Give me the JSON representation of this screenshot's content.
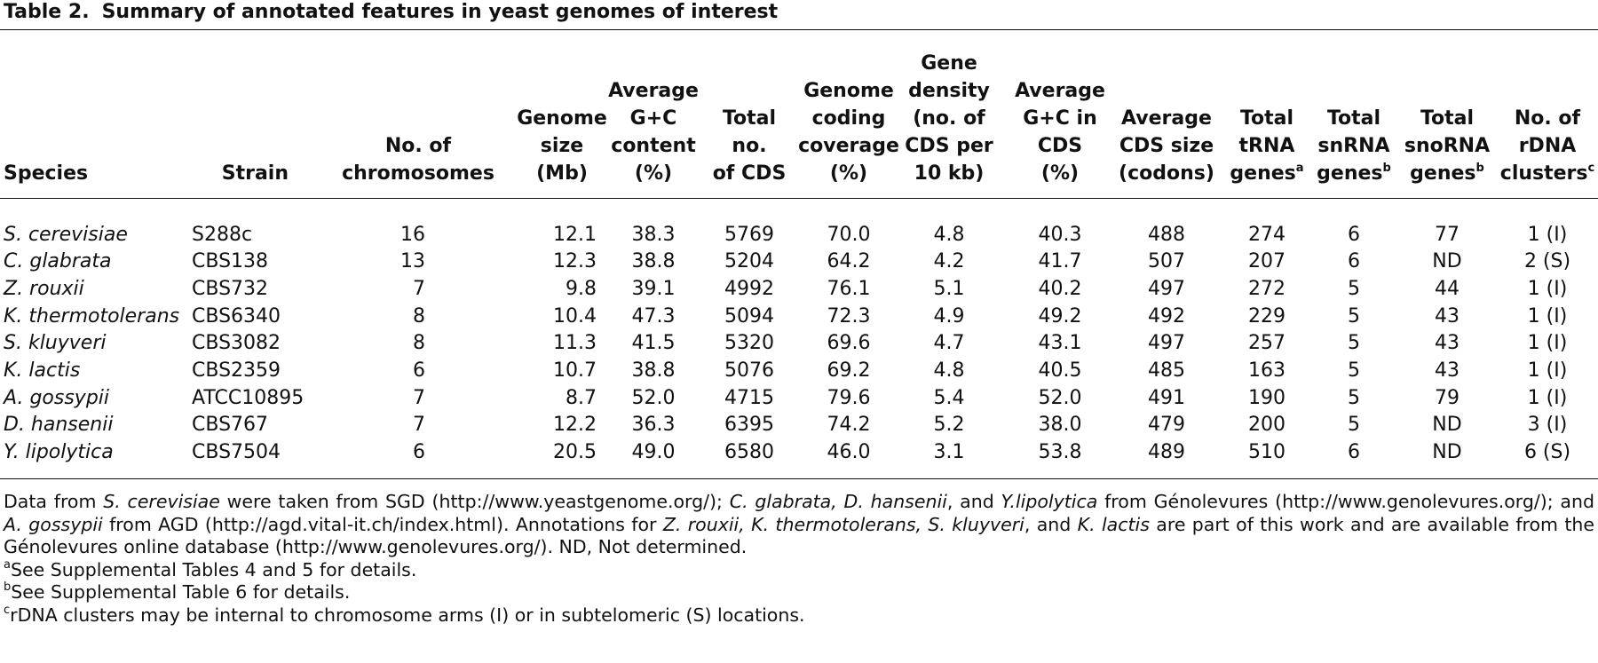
{
  "title": {
    "label": "Table 2.",
    "text": "Summary of annotated features in yeast genomes of interest"
  },
  "table": {
    "headers": [
      {
        "lines": [
          "Species"
        ]
      },
      {
        "lines": [
          "Strain"
        ]
      },
      {
        "lines": [
          "No. of",
          "chromosomes"
        ]
      },
      {
        "lines": [
          "Genome",
          "size",
          "(Mb)"
        ]
      },
      {
        "lines": [
          "Average",
          "G+C",
          "content",
          "(%)"
        ]
      },
      {
        "lines": [
          "Total",
          "no.",
          "of CDS"
        ]
      },
      {
        "lines": [
          "Genome",
          "coding",
          "coverage",
          "(%)"
        ]
      },
      {
        "lines": [
          "Gene",
          "density",
          "(no. of",
          "CDS per",
          "10 kb)"
        ]
      },
      {
        "lines": [
          "Average",
          "G+C in",
          "CDS",
          "(%)"
        ]
      },
      {
        "lines": [
          "Average",
          "CDS size",
          "(codons)"
        ]
      },
      {
        "lines": [
          "Total",
          "tRNA",
          "genes"
        ],
        "note": "a"
      },
      {
        "lines": [
          "Total",
          "snRNA",
          "genes"
        ],
        "note": "b"
      },
      {
        "lines": [
          "Total",
          "snoRNA",
          "genes"
        ],
        "note": "b"
      },
      {
        "lines": [
          "No. of",
          "rDNA",
          "clusters"
        ],
        "note": "c"
      }
    ],
    "rows": [
      [
        "S. cerevisiae",
        "S288c",
        "16",
        "12.1",
        "38.3",
        "5769",
        "70.0",
        "4.8",
        "40.3",
        "488",
        "274",
        "6",
        "77",
        "1 (I)"
      ],
      [
        "C. glabrata",
        "CBS138",
        "13",
        "12.3",
        "38.8",
        "5204",
        "64.2",
        "4.2",
        "41.7",
        "507",
        "207",
        "6",
        "ND",
        "2 (S)"
      ],
      [
        "Z. rouxii",
        "CBS732",
        "7",
        "9.8",
        "39.1",
        "4992",
        "76.1",
        "5.1",
        "40.2",
        "497",
        "272",
        "5",
        "44",
        "1 (I)"
      ],
      [
        "K. thermotolerans",
        "CBS6340",
        "8",
        "10.4",
        "47.3",
        "5094",
        "72.3",
        "4.9",
        "49.2",
        "492",
        "229",
        "5",
        "43",
        "1 (I)"
      ],
      [
        "S. kluyveri",
        "CBS3082",
        "8",
        "11.3",
        "41.5",
        "5320",
        "69.6",
        "4.7",
        "43.1",
        "497",
        "257",
        "5",
        "43",
        "1 (I)"
      ],
      [
        "K. lactis",
        "CBS2359",
        "6",
        "10.7",
        "38.8",
        "5076",
        "69.2",
        "4.8",
        "40.5",
        "485",
        "163",
        "5",
        "43",
        "1 (I)"
      ],
      [
        "A. gossypii",
        "ATCC10895",
        "7",
        "8.7",
        "52.0",
        "4715",
        "79.6",
        "5.4",
        "52.0",
        "491",
        "190",
        "5",
        "79",
        "1 (I)"
      ],
      [
        "D. hansenii",
        "CBS767",
        "7",
        "12.2",
        "36.3",
        "6395",
        "74.2",
        "5.2",
        "38.0",
        "479",
        "200",
        "5",
        "ND",
        "3 (I)"
      ],
      [
        "Y. lipolytica",
        "CBS7504",
        "6",
        "20.5",
        "49.0",
        "6580",
        "46.0",
        "3.1",
        "53.8",
        "489",
        "510",
        "6",
        "ND",
        "6 (S)"
      ]
    ]
  },
  "footnote": {
    "segments": [
      {
        "text": "Data from "
      },
      {
        "text": "S. cerevisiae",
        "italic": true
      },
      {
        "text": " were taken from SGD (http://www.yeastgenome.org/); "
      },
      {
        "text": "C. glabrata, D. hansenii",
        "italic": true
      },
      {
        "text": ", and "
      },
      {
        "text": "Y.lipolytica",
        "italic": true
      },
      {
        "text": " from Génolevures (http://www.genolevures.org/); and "
      },
      {
        "text": "A. gossypii",
        "italic": true
      },
      {
        "text": " from AGD (http://agd.vital-it.ch/index.html). Annotations for "
      },
      {
        "text": "Z. rouxii, K. thermotolerans, S. kluyveri",
        "italic": true
      },
      {
        "text": ", and "
      },
      {
        "text": "K. lactis",
        "italic": true
      },
      {
        "text": " are part of this work and are available from the Génolevures online database (http://www.genolevures.org/). ND, Not determined."
      }
    ],
    "notes": [
      {
        "mark": "a",
        "text": "See Supplemental Tables 4 and 5 for details."
      },
      {
        "mark": "b",
        "text": "See Supplemental Table 6 for details."
      },
      {
        "mark": "c",
        "text": "rDNA clusters may be internal to chromosome arms (I) or in subtelomeric (S) locations."
      }
    ]
  }
}
